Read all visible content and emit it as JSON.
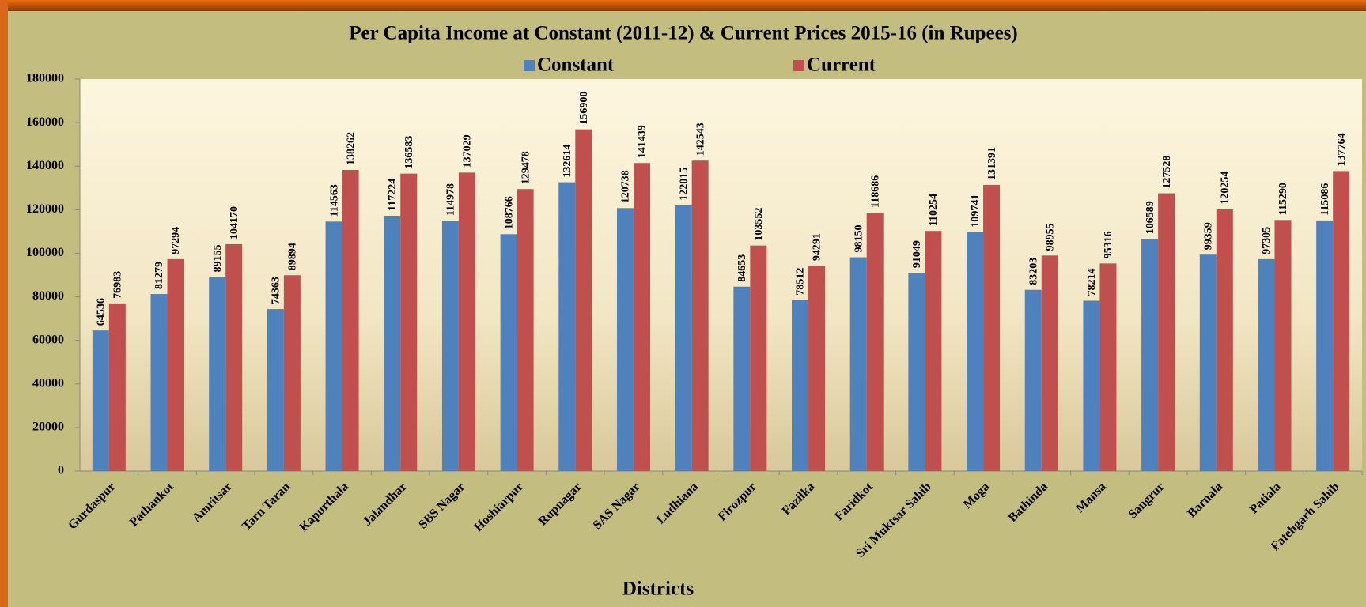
{
  "chart_data": {
    "type": "bar",
    "title": "Per Capita Income at Constant (2011-12) & Current Prices 2015-16 (in Rupees)",
    "x_label": "Districts",
    "categories": [
      "Gurdaspur",
      "Pathankot",
      "Amritsar",
      "Tarn Taran",
      "Kapurthala",
      "Jalandhar",
      "SBS Nagar",
      "Hoshiarpur",
      "Rupnagar",
      "SAS Nagar",
      "Ludhiana",
      "Firozpur",
      "Fazilka",
      "Faridkot",
      "Sri Muktsar Sahib",
      "Moga",
      "Bathinda",
      "Mansa",
      "Sangrur",
      "Barnala",
      "Patiala",
      "Fatehgarh Sahib"
    ],
    "series": [
      {
        "name": "Constant",
        "color": "#4f81bd",
        "values": [
          64536,
          81279,
          89155,
          74363,
          114563,
          117224,
          114978,
          108766,
          132614,
          120738,
          122015,
          84653,
          78512,
          98150,
          91049,
          109741,
          83203,
          78214,
          106589,
          99359,
          97305,
          115086
        ]
      },
      {
        "name": "Current",
        "color": "#c0504d",
        "values": [
          76983,
          97294,
          104170,
          89894,
          138262,
          136583,
          137029,
          129478,
          156900,
          141439,
          142543,
          103552,
          94291,
          118686,
          110254,
          131391,
          98955,
          95316,
          127528,
          120254,
          115290,
          137764
        ]
      }
    ],
    "ylim": [
      0,
      180000
    ],
    "yticks": [
      0,
      20000,
      40000,
      60000,
      80000,
      100000,
      120000,
      140000,
      160000,
      180000
    ],
    "grid": false,
    "legend": "top"
  }
}
